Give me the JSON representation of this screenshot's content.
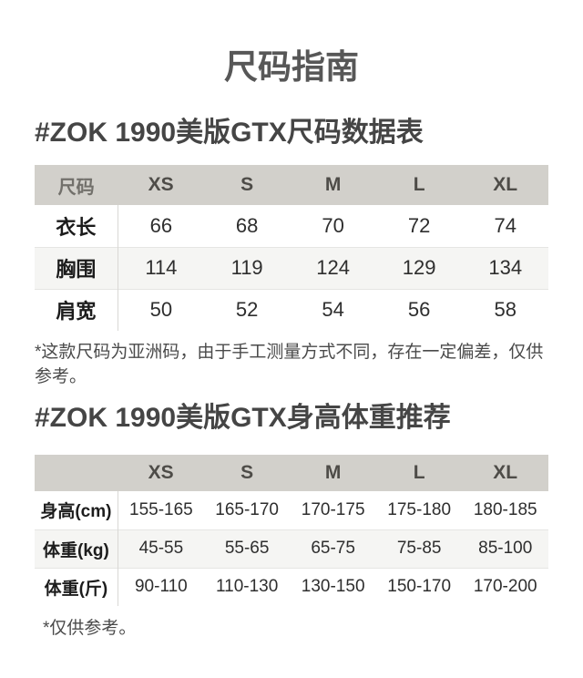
{
  "page": {
    "title": "尺码指南"
  },
  "section1": {
    "heading": "#ZOK 1990美版GTX尺码数据表",
    "table": {
      "columns": [
        "尺码",
        "XS",
        "S",
        "M",
        "L",
        "XL"
      ],
      "rows": [
        {
          "label": "衣长",
          "values": [
            "66",
            "68",
            "70",
            "72",
            "74"
          ]
        },
        {
          "label": "胸围",
          "values": [
            "114",
            "119",
            "124",
            "129",
            "134"
          ]
        },
        {
          "label": "肩宽",
          "values": [
            "50",
            "52",
            "54",
            "56",
            "58"
          ]
        }
      ]
    },
    "footnote": "*这款尺码为亚洲码，由于手工测量方式不同，存在一定偏差，仅供参考。"
  },
  "section2": {
    "heading": "#ZOK 1990美版GTX身高体重推荐",
    "table": {
      "columns": [
        "",
        "XS",
        "S",
        "M",
        "L",
        "XL"
      ],
      "rows": [
        {
          "label": "身高(cm)",
          "values": [
            "155-165",
            "165-170",
            "170-175",
            "175-180",
            "180-185"
          ]
        },
        {
          "label": "体重(kg)",
          "values": [
            "45-55",
            "55-65",
            "65-75",
            "75-85",
            "85-100"
          ]
        },
        {
          "label": "体重(斤)",
          "values": [
            "90-110",
            "110-130",
            "130-150",
            "150-170",
            "170-200"
          ]
        }
      ]
    },
    "footnote": "*仅供参考。"
  },
  "colors": {
    "header_bg": "#d2d0cb",
    "stripe_bg": "#f5f5f3",
    "divider": "#d9d8d5",
    "row_border": "#e5e5e3",
    "title_text": "#575757",
    "heading_text": "#454545",
    "header_label_text": "#72706b",
    "header_size_text": "#4e4c48",
    "row_label_text": "#1c1c1c",
    "value_text": "#2e2e2e",
    "footnote_text": "#4a4a4a"
  }
}
